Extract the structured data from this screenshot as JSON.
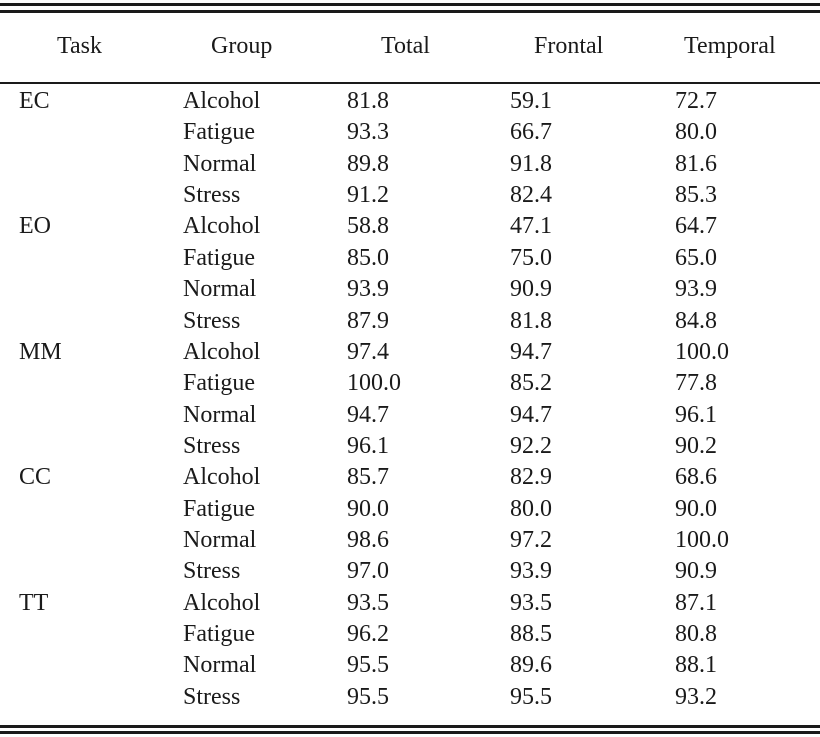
{
  "table": {
    "headers": [
      "Task",
      "Group",
      "Total",
      "Frontal",
      "Temporal"
    ],
    "rows": [
      {
        "task": "EC",
        "group": "Alcohol",
        "total": "81.8",
        "frontal": "59.1",
        "temporal": "72.7"
      },
      {
        "task": "",
        "group": "Fatigue",
        "total": "93.3",
        "frontal": "66.7",
        "temporal": "80.0"
      },
      {
        "task": "",
        "group": "Normal",
        "total": "89.8",
        "frontal": "91.8",
        "temporal": "81.6"
      },
      {
        "task": "",
        "group": "Stress",
        "total": "91.2",
        "frontal": "82.4",
        "temporal": "85.3"
      },
      {
        "task": "EO",
        "group": "Alcohol",
        "total": "58.8",
        "frontal": "47.1",
        "temporal": "64.7"
      },
      {
        "task": "",
        "group": "Fatigue",
        "total": "85.0",
        "frontal": "75.0",
        "temporal": "65.0"
      },
      {
        "task": "",
        "group": "Normal",
        "total": "93.9",
        "frontal": "90.9",
        "temporal": "93.9"
      },
      {
        "task": "",
        "group": "Stress",
        "total": "87.9",
        "frontal": "81.8",
        "temporal": "84.8"
      },
      {
        "task": "MM",
        "group": "Alcohol",
        "total": "97.4",
        "frontal": "94.7",
        "temporal": "100.0"
      },
      {
        "task": "",
        "group": "Fatigue",
        "total": "100.0",
        "frontal": "85.2",
        "temporal": "77.8"
      },
      {
        "task": "",
        "group": "Normal",
        "total": "94.7",
        "frontal": "94.7",
        "temporal": "96.1"
      },
      {
        "task": "",
        "group": "Stress",
        "total": "96.1",
        "frontal": "92.2",
        "temporal": "90.2"
      },
      {
        "task": "CC",
        "group": "Alcohol",
        "total": "85.7",
        "frontal": "82.9",
        "temporal": "68.6"
      },
      {
        "task": "",
        "group": "Fatigue",
        "total": "90.0",
        "frontal": "80.0",
        "temporal": "90.0"
      },
      {
        "task": "",
        "group": "Normal",
        "total": "98.6",
        "frontal": "97.2",
        "temporal": "100.0"
      },
      {
        "task": "",
        "group": "Stress",
        "total": "97.0",
        "frontal": "93.9",
        "temporal": "90.9"
      },
      {
        "task": "TT",
        "group": "Alcohol",
        "total": "93.5",
        "frontal": "93.5",
        "temporal": "87.1"
      },
      {
        "task": "",
        "group": "Fatigue",
        "total": "96.2",
        "frontal": "88.5",
        "temporal": "80.8"
      },
      {
        "task": "",
        "group": "Normal",
        "total": "95.5",
        "frontal": "89.6",
        "temporal": "88.1"
      },
      {
        "task": "",
        "group": "Stress",
        "total": "95.5",
        "frontal": "95.5",
        "temporal": "93.2"
      }
    ]
  }
}
